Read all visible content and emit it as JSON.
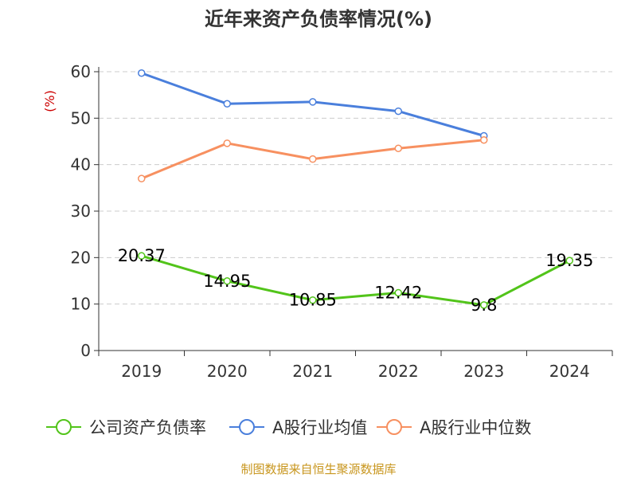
{
  "chart_data": {
    "type": "line",
    "title": "近年来资产负债率情况(%)",
    "ylabel": "(%)",
    "xlabel": "",
    "categories": [
      "2019",
      "2020",
      "2021",
      "2022",
      "2023",
      "2024"
    ],
    "ylim": [
      0,
      60
    ],
    "yticks": [
      0,
      10,
      20,
      30,
      40,
      50,
      60
    ],
    "grid": "horizontal-dashed",
    "legend_position": "bottom",
    "series": [
      {
        "name": "公司资产负债率",
        "color": "#52c41a",
        "values": [
          20.37,
          14.95,
          10.85,
          12.42,
          9.8,
          19.35
        ],
        "labels": [
          "20.37",
          "14.95",
          "10.85",
          "12.42",
          "9.8",
          "19.35"
        ]
      },
      {
        "name": "A股行业均值",
        "color": "#4a7fdc",
        "values": [
          59.7,
          53.1,
          53.5,
          51.5,
          46.2,
          null
        ]
      },
      {
        "name": "A股行业中位数",
        "color": "#f79060",
        "values": [
          37.0,
          44.6,
          41.2,
          43.5,
          45.3,
          null
        ]
      }
    ]
  },
  "footer": {
    "source": "制图数据来自恒生聚源数据库"
  }
}
